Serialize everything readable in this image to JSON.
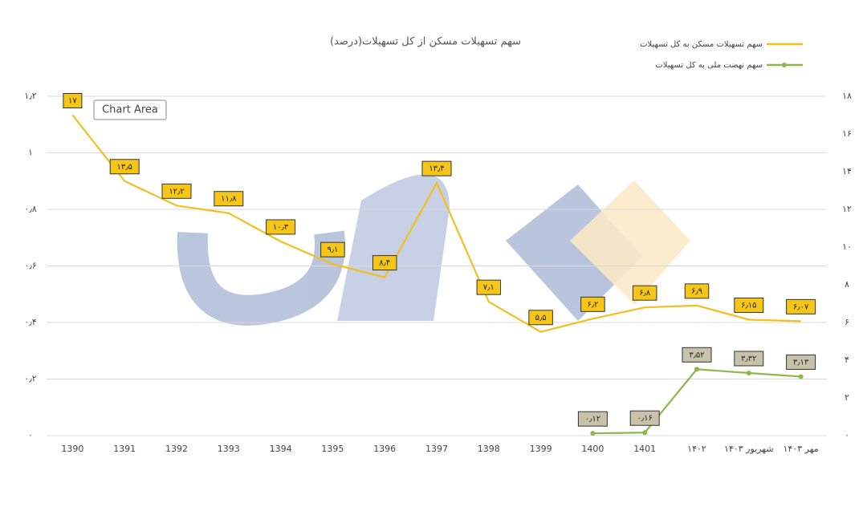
{
  "chart_data": {
    "type": "line",
    "title": "سهم تسهیلات مسکن از کل تسهیلات(درصد)",
    "tooltip": "Chart Area",
    "categories": [
      "1390",
      "1391",
      "1392",
      "1393",
      "1394",
      "1395",
      "1396",
      "1397",
      "1398",
      "1399",
      "1400",
      "1401",
      "۱۴۰۲",
      "شهریور ۱۴۰۳",
      "مهر ۱۴۰۳"
    ],
    "series": [
      {
        "name": "سهم تسهیلات مسکن به کل تسهیلات",
        "color": "#f2c01e",
        "axis": "y2",
        "values": [
          17,
          13.5,
          12.2,
          11.8,
          10.3,
          9.1,
          8.4,
          13.4,
          7.1,
          5.5,
          6.2,
          6.8,
          6.9,
          6.15,
          6.07
        ],
        "value_labels": [
          "۱۷",
          "۱۳٫۵",
          "۱۲٫۲",
          "۱۱٫۸",
          "۱۰٫۳",
          "۹٫۱",
          "۸٫۴",
          "۱۳٫۴",
          "۷٫۱",
          "۵٫۵",
          "۶٫۲",
          "۶٫۸",
          "۶٫۹",
          "۶٫۱۵",
          "۶٫۰۷"
        ]
      },
      {
        "name": "سهم نهضت ملی به کل تسهیلات",
        "color": "#8db84a",
        "axis": "y2",
        "values": [
          null,
          null,
          null,
          null,
          null,
          null,
          null,
          null,
          null,
          null,
          0.12,
          0.16,
          3.52,
          3.32,
          3.13
        ],
        "value_labels": [
          null,
          null,
          null,
          null,
          null,
          null,
          null,
          null,
          null,
          null,
          "۰٫۱۲",
          "۰٫۱۶",
          "۳٫۵۲",
          "۳٫۳۲",
          "۳٫۱۳"
        ]
      }
    ],
    "ylim": [
      0,
      1.2
    ],
    "yticks": [
      {
        "value": 0,
        "label": "۰"
      },
      {
        "value": 0.2,
        "label": "۰٫۲"
      },
      {
        "value": 0.4,
        "label": "۰٫۴"
      },
      {
        "value": 0.6,
        "label": "۰٫۶"
      },
      {
        "value": 0.8,
        "label": "۰٫۸"
      },
      {
        "value": 1,
        "label": "۱"
      },
      {
        "value": 1.2,
        "label": "۱٫۲"
      }
    ],
    "y2lim": [
      0,
      18
    ],
    "y2ticks": [
      {
        "value": 0,
        "label": "۰"
      },
      {
        "value": 2,
        "label": "۲"
      },
      {
        "value": 4,
        "label": "۴"
      },
      {
        "value": 6,
        "label": "۶"
      },
      {
        "value": 8,
        "label": "۸"
      },
      {
        "value": 10,
        "label": "۱۰"
      },
      {
        "value": 12,
        "label": "۱۲"
      },
      {
        "value": 14,
        "label": "۱۴"
      },
      {
        "value": 16,
        "label": "۱۶"
      },
      {
        "value": 18,
        "label": "۱۸"
      }
    ],
    "grid": true,
    "legend": "top-right"
  }
}
